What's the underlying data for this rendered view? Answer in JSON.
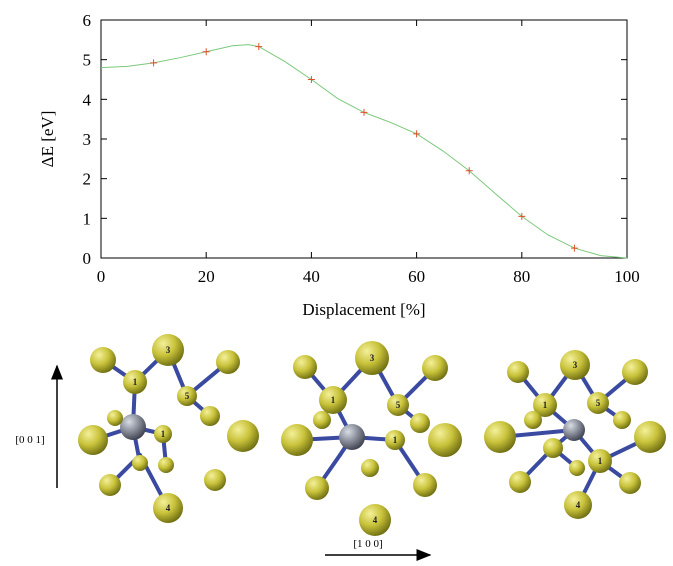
{
  "chart_data": {
    "type": "line",
    "x_label": "Displacement [%]",
    "y_label": "ΔE [eV]",
    "xlim": [
      0,
      100
    ],
    "xticks": [
      0,
      20,
      40,
      60,
      80,
      100
    ],
    "ylim": [
      0,
      6
    ],
    "yticks": [
      0,
      1,
      2,
      3,
      4,
      5,
      6
    ],
    "series": [
      {
        "color": "#7cc87c",
        "x": [
          0,
          5,
          10,
          15,
          20,
          25,
          28,
          30,
          35,
          40,
          45,
          50,
          55,
          60,
          65,
          70,
          75,
          80,
          85,
          90,
          95,
          100
        ],
        "values": [
          4.8,
          4.83,
          4.92,
          5.05,
          5.2,
          5.35,
          5.38,
          5.33,
          4.95,
          4.5,
          4.02,
          3.67,
          3.42,
          3.13,
          2.7,
          2.2,
          1.62,
          1.05,
          0.58,
          0.25,
          0.06,
          0
        ]
      },
      {
        "color": "#e0502a",
        "marker": "+",
        "x": [
          10,
          20,
          30,
          40,
          50,
          60,
          70,
          80,
          90
        ],
        "values": [
          4.92,
          5.2,
          5.33,
          4.5,
          3.67,
          3.13,
          2.2,
          1.05,
          0.25
        ]
      }
    ]
  },
  "structures": [
    {
      "atom_labels": [
        "3",
        "1",
        "5",
        "1",
        "4"
      ]
    },
    {
      "atom_labels": [
        "3",
        "1",
        "5",
        "1",
        "4"
      ]
    },
    {
      "atom_labels": [
        "3",
        "1",
        "5",
        "1",
        "4"
      ]
    }
  ],
  "axes_labels": {
    "vertical": "[0 0 1]",
    "horizontal": "[1 0 0]"
  }
}
